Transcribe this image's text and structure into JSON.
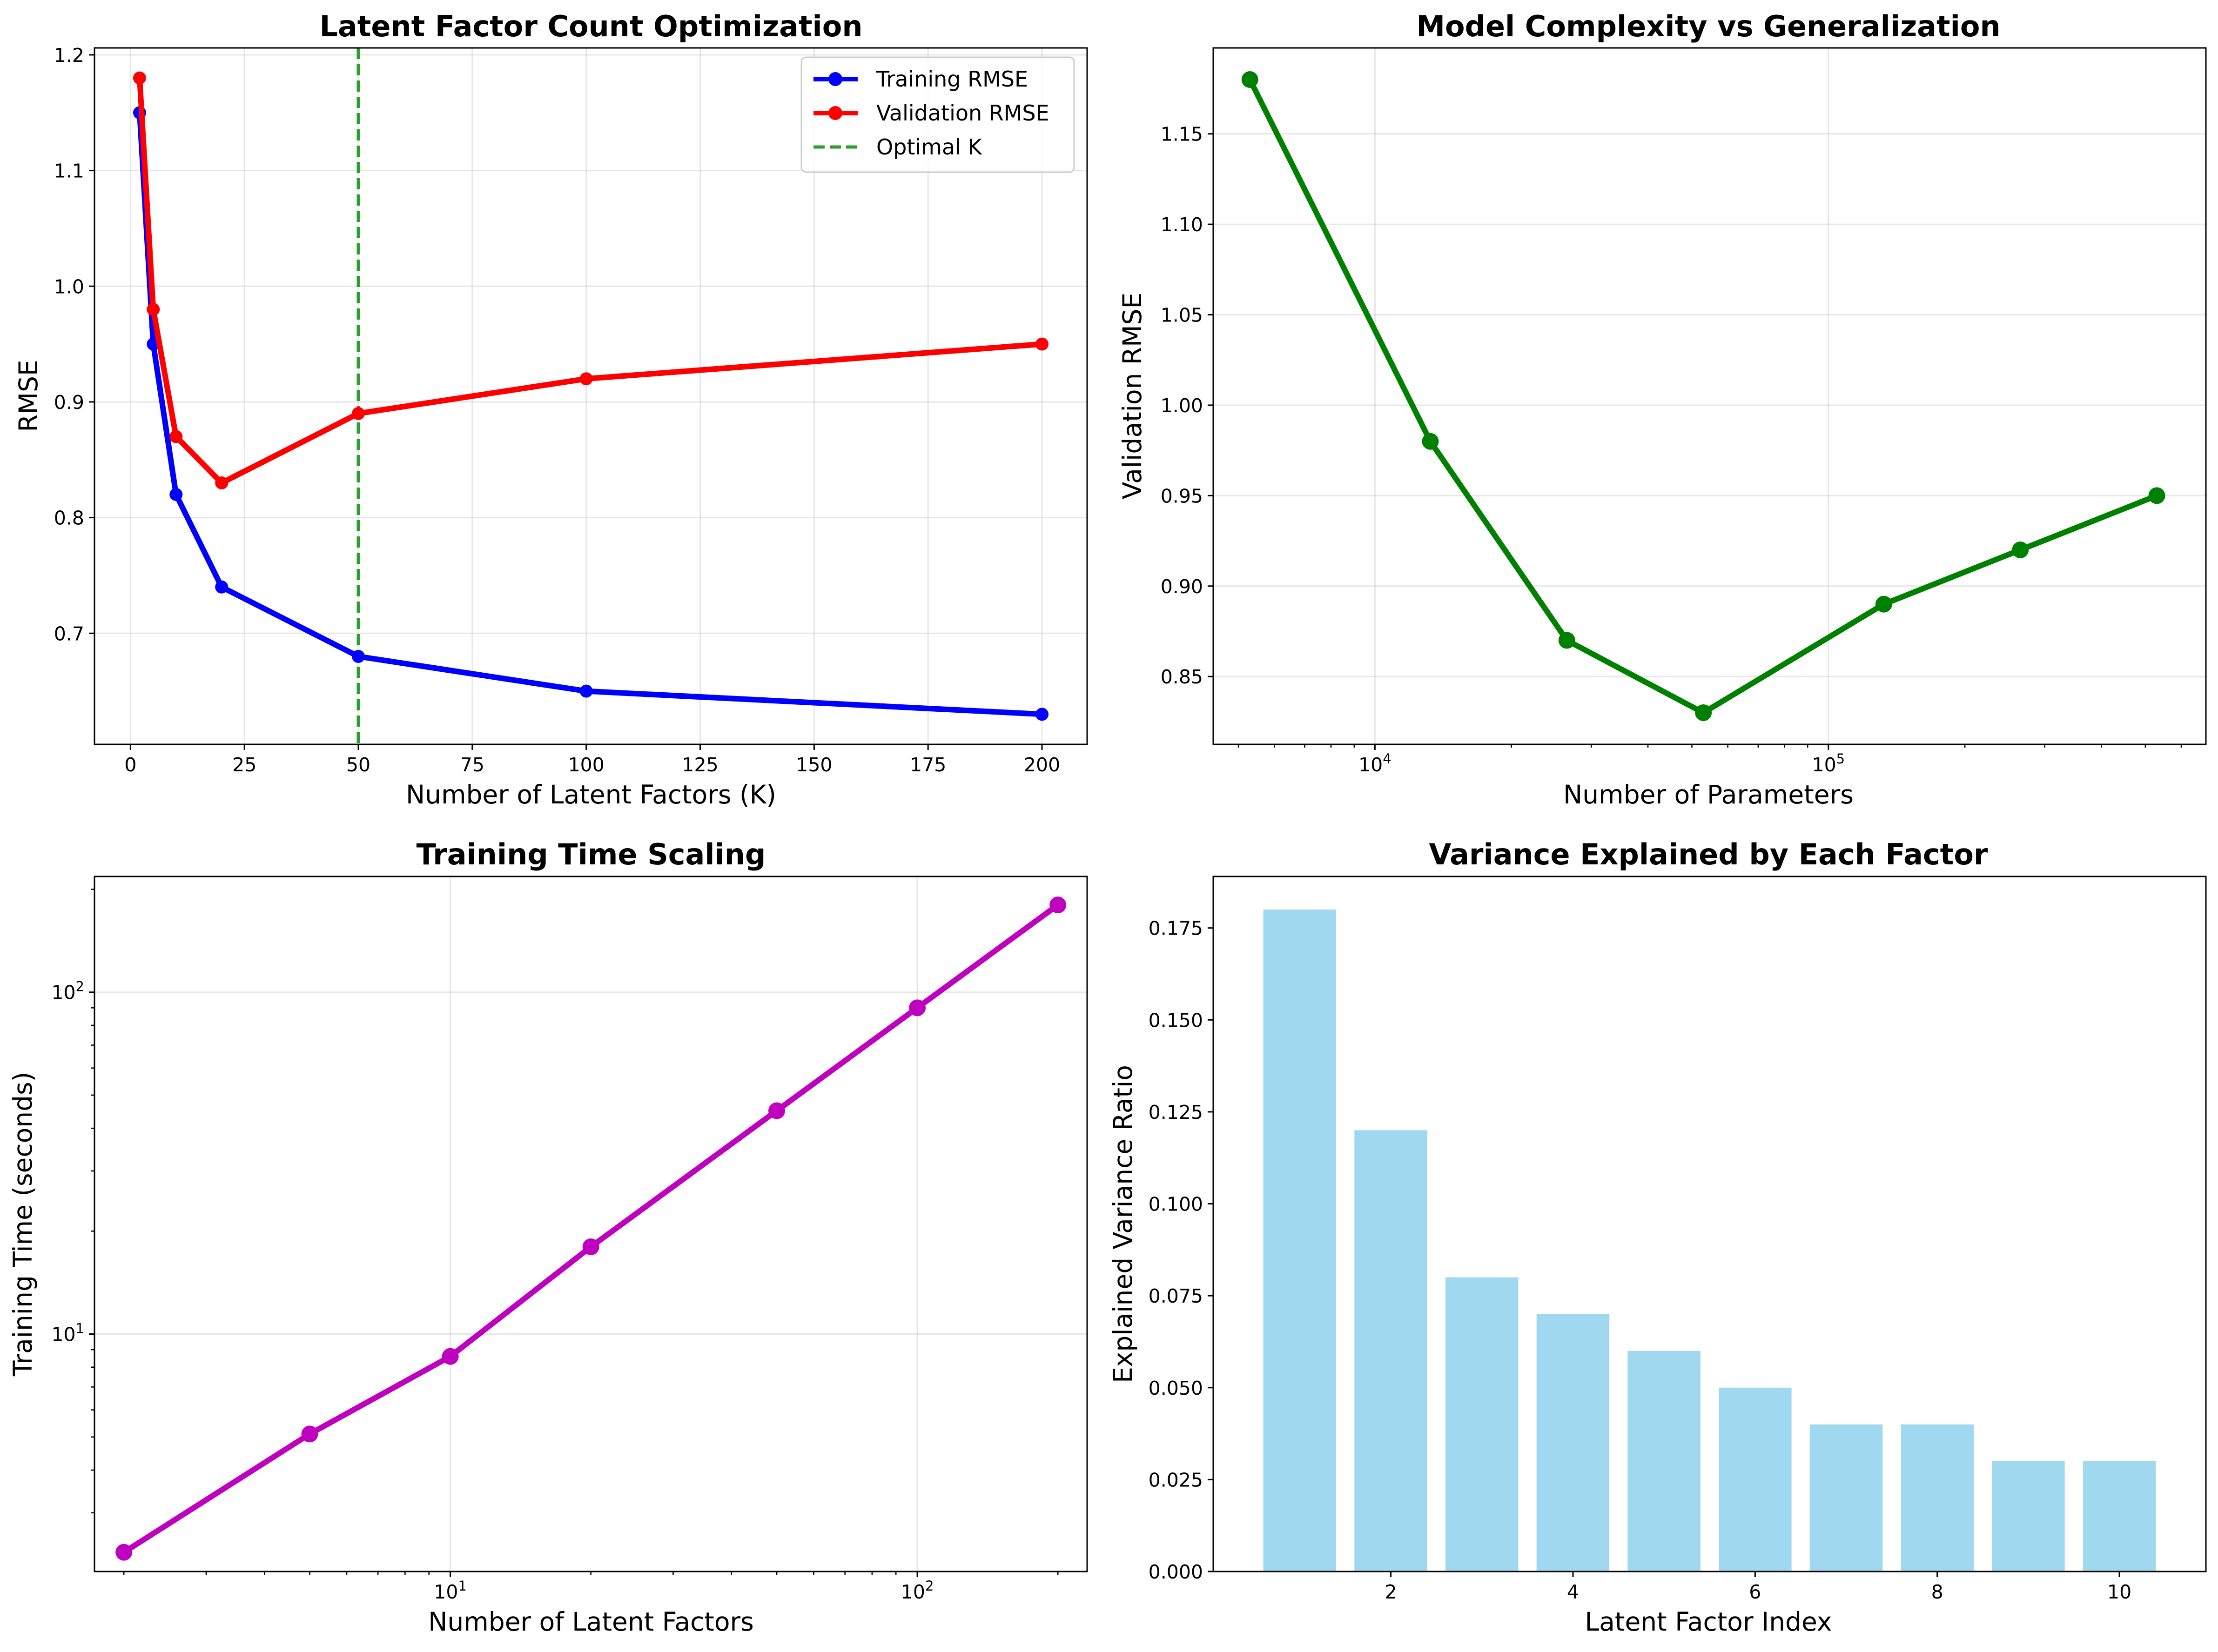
{
  "colors": {
    "training": "#0000ff",
    "validation": "#ff0000",
    "optimal": "#2ca02c",
    "complexity": "#008000",
    "time": "#bf00bf",
    "bars": "#87ceeb"
  },
  "chart_data": [
    {
      "id": "latent",
      "type": "line",
      "title": "Latent Factor Count Optimization",
      "xlabel": "Number of Latent Factors (K)",
      "ylabel": "RMSE",
      "xlim": [
        -7.9,
        209.9
      ],
      "ylim": [
        0.604,
        1.206
      ],
      "xticks": [
        "0",
        "25",
        "50",
        "75",
        "100",
        "125",
        "150",
        "175",
        "200"
      ],
      "yticks": [
        "0.7",
        "0.8",
        "0.9",
        "1.0",
        "1.1",
        "1.2"
      ],
      "grid": true,
      "legend_position": "top-right",
      "legend": [
        "Training RMSE",
        "Validation RMSE",
        "Optimal K"
      ],
      "x": [
        2,
        5,
        10,
        20,
        50,
        100,
        200
      ],
      "series": [
        {
          "name": "Training RMSE",
          "values": [
            1.15,
            0.95,
            0.82,
            0.74,
            0.68,
            0.65,
            0.63
          ]
        },
        {
          "name": "Validation RMSE",
          "values": [
            1.18,
            0.98,
            0.87,
            0.83,
            0.89,
            0.92,
            0.95
          ]
        }
      ],
      "vline": {
        "name": "Optimal K",
        "x": 50
      }
    },
    {
      "id": "complexity",
      "type": "line",
      "title": "Model Complexity vs Generalization",
      "xlabel": "Number of Parameters",
      "ylabel": "Validation RMSE",
      "xscale": "log",
      "xlim": [
        4400,
        680000
      ],
      "ylim": [
        0.8125,
        1.1975
      ],
      "xticks": [
        {
          "base": "10",
          "exp": "4",
          "value": 10000
        },
        {
          "base": "10",
          "exp": "5",
          "value": 100000
        }
      ],
      "yticks": [
        "0.85",
        "0.90",
        "0.95",
        "1.00",
        "1.05",
        "1.10",
        "1.15"
      ],
      "grid": true,
      "x": [
        5300,
        13250,
        26500,
        53000,
        132500,
        265000,
        530000
      ],
      "series": [
        {
          "name": "Validation RMSE",
          "values": [
            1.18,
            0.98,
            0.87,
            0.83,
            0.89,
            0.92,
            0.95
          ]
        }
      ]
    },
    {
      "id": "time",
      "type": "line",
      "title": "Training Time Scaling",
      "xlabel": "Number of Latent Factors",
      "ylabel": "Training Time (seconds)",
      "xscale": "log",
      "yscale": "log",
      "xlim": [
        1.73,
        231
      ],
      "ylim": [
        2.02,
        218
      ],
      "xticks": [
        {
          "base": "10",
          "exp": "1",
          "value": 10
        },
        {
          "base": "10",
          "exp": "2",
          "value": 100
        }
      ],
      "yticks": [
        {
          "base": "10",
          "exp": "1",
          "value": 10
        },
        {
          "base": "10",
          "exp": "2",
          "value": 100
        }
      ],
      "grid": true,
      "x": [
        2,
        5,
        10,
        20,
        50,
        100,
        200
      ],
      "series": [
        {
          "name": "Training Time",
          "values": [
            2.3,
            5.1,
            8.6,
            18.0,
            45.0,
            90.0,
            180.0
          ]
        }
      ]
    },
    {
      "id": "variance",
      "type": "bar",
      "title": "Variance Explained by Each Factor",
      "xlabel": "Latent Factor Index",
      "ylabel": "Explained Variance Ratio",
      "xlim": [
        0.05,
        10.95
      ],
      "ylim": [
        0,
        0.189
      ],
      "xticks": [
        "2",
        "4",
        "6",
        "8",
        "10"
      ],
      "yticks": [
        "0.000",
        "0.025",
        "0.050",
        "0.075",
        "0.100",
        "0.125",
        "0.150",
        "0.175"
      ],
      "grid": false,
      "categories": [
        1,
        2,
        3,
        4,
        5,
        6,
        7,
        8,
        9,
        10
      ],
      "values": [
        0.18,
        0.12,
        0.08,
        0.07,
        0.06,
        0.05,
        0.04,
        0.04,
        0.03,
        0.03
      ]
    }
  ]
}
